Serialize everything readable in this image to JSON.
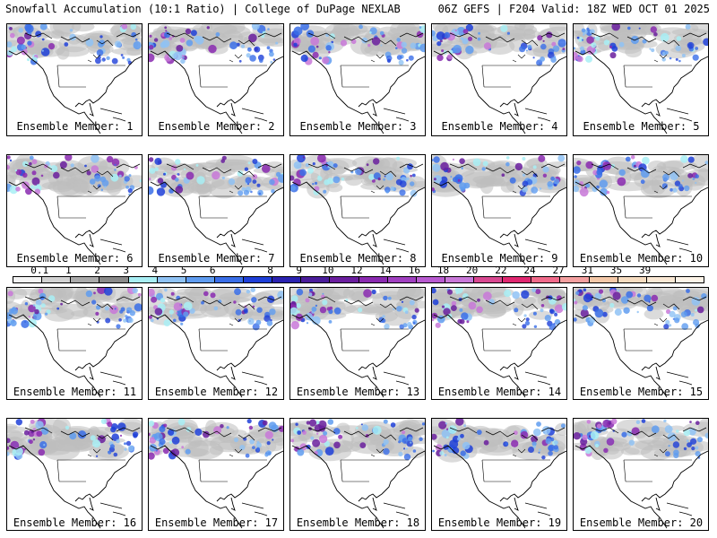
{
  "header": {
    "left": "Snowfall Accumulation (10:1 Ratio) | College of DuPage NEXLAB",
    "right": "06Z GEFS | F204 Valid: 18Z WED OCT 01 2025"
  },
  "panels": [
    {
      "caption": "Ensemble Member: 1"
    },
    {
      "caption": "Ensemble Member: 2"
    },
    {
      "caption": "Ensemble Member: 3"
    },
    {
      "caption": "Ensemble Member: 4"
    },
    {
      "caption": "Ensemble Member: 5"
    },
    {
      "caption": "Ensemble Member: 6"
    },
    {
      "caption": "Ensemble Member: 7"
    },
    {
      "caption": "Ensemble Member: 8"
    },
    {
      "caption": "Ensemble Member: 9"
    },
    {
      "caption": "Ensemble Member: 10"
    },
    {
      "caption": "Ensemble Member: 11"
    },
    {
      "caption": "Ensemble Member: 12"
    },
    {
      "caption": "Ensemble Member: 13"
    },
    {
      "caption": "Ensemble Member: 14"
    },
    {
      "caption": "Ensemble Member: 15"
    },
    {
      "caption": "Ensemble Member: 16"
    },
    {
      "caption": "Ensemble Member: 17"
    },
    {
      "caption": "Ensemble Member: 18"
    },
    {
      "caption": "Ensemble Member: 19"
    },
    {
      "caption": "Ensemble Member: 20"
    }
  ],
  "colorbar": {
    "labels": [
      "0.1",
      "1",
      "2",
      "3",
      "4",
      "5",
      "6",
      "7",
      "8",
      "9",
      "10",
      "12",
      "14",
      "16",
      "18",
      "20",
      "22",
      "24",
      "27",
      "31",
      "35",
      "39"
    ],
    "colors": [
      "#f4f4f4",
      "#d2d2d2",
      "#aaaaaa",
      "#8a8a8a",
      "#a8eef4",
      "#8fc2f4",
      "#5f9cf0",
      "#3a6ee8",
      "#1e3fd8",
      "#2a22b0",
      "#4a1c9a",
      "#6a1e9e",
      "#8a2ab0",
      "#a040c0",
      "#b85ad0",
      "#c878d8",
      "#d84890",
      "#e02870",
      "#f06a8a",
      "#f4a0a0",
      "#f4c8a8",
      "#f6dcc0",
      "#fae8d4",
      "#fdf4e8"
    ]
  }
}
